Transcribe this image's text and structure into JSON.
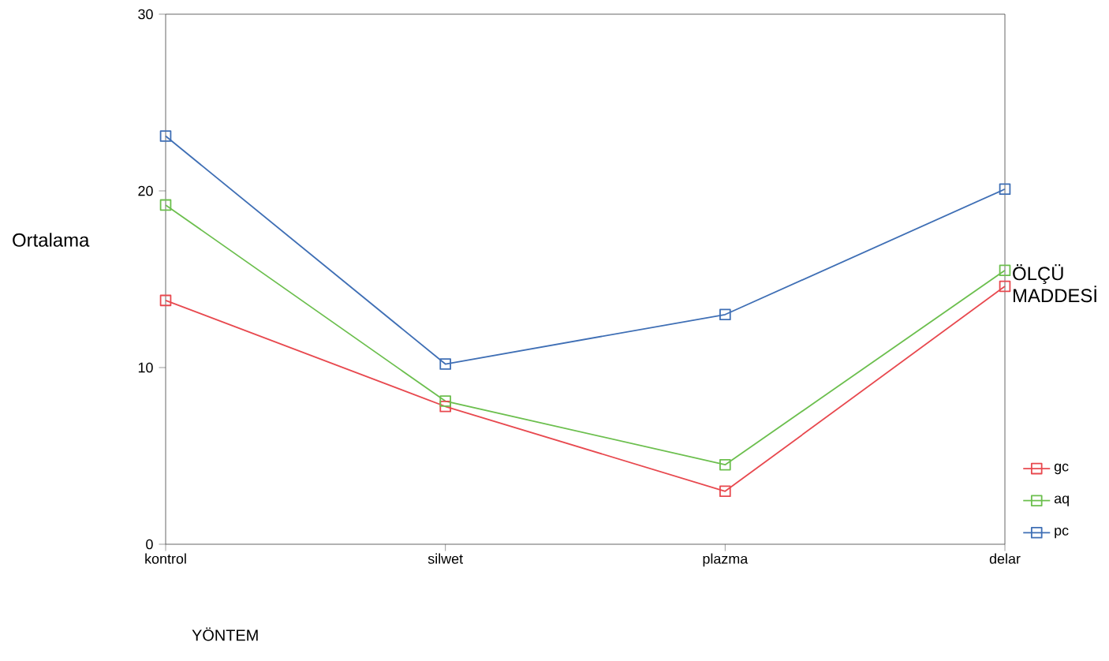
{
  "chart_data": {
    "type": "line",
    "xlabel": "YÖNTEM",
    "ylabel": "Ortalama",
    "legend_title": "ÖLÇÜ MADDESİ",
    "categories": [
      "kontrol",
      "silwet",
      "plazma",
      "delar"
    ],
    "series": [
      {
        "name": "gc",
        "color": "#e8494f",
        "values": [
          13.8,
          7.8,
          3.0,
          14.6
        ]
      },
      {
        "name": "aq",
        "color": "#6cbf4e",
        "values": [
          19.2,
          8.1,
          4.5,
          15.5
        ]
      },
      {
        "name": "pc",
        "color": "#3f6fb5",
        "values": [
          23.1,
          10.2,
          13.0,
          20.1
        ]
      }
    ],
    "ylim": [
      0,
      30
    ],
    "yticks": [
      0,
      10,
      20,
      30
    ],
    "grid": false,
    "legend": "right",
    "marker": "square",
    "line_style": "solid"
  }
}
